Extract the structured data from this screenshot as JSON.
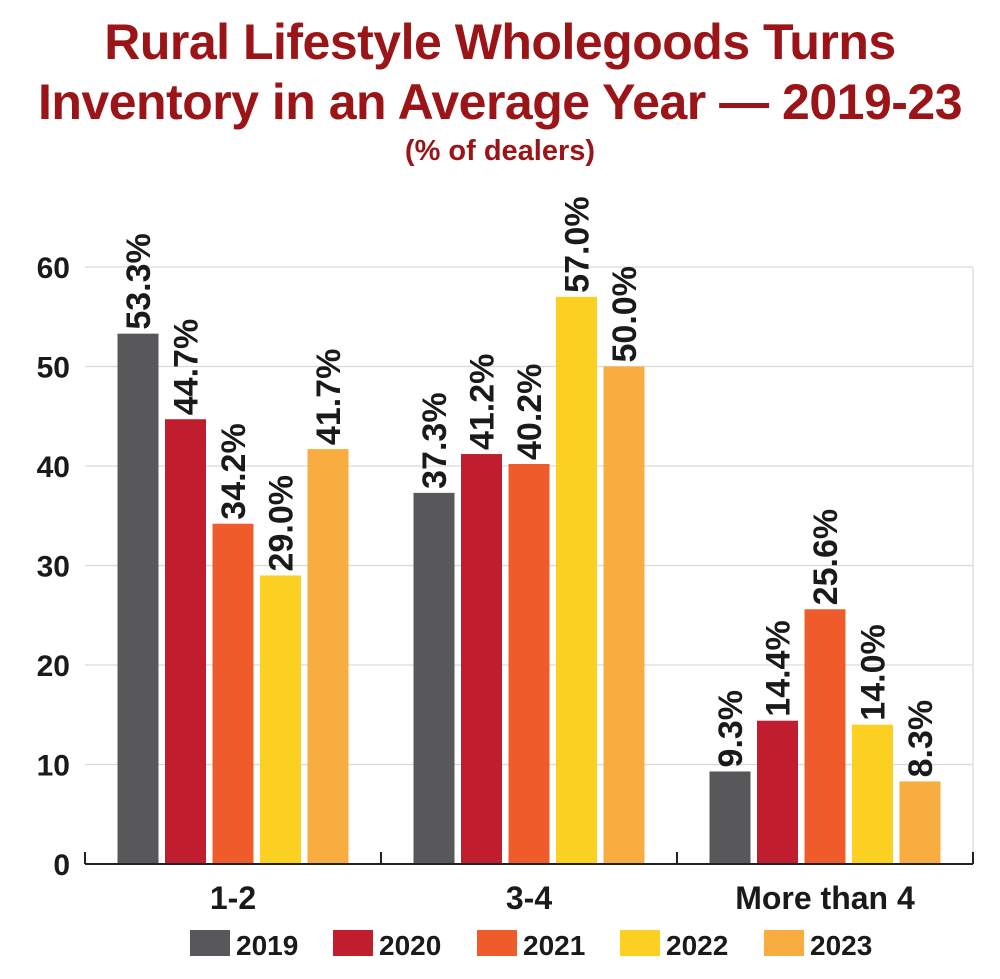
{
  "chart_data": {
    "type": "bar",
    "title": "Rural Lifestyle Wholegoods Turns",
    "title_line2": "Inventory in an Average Year — 2019-23",
    "subtitle": "(% of dealers)",
    "categories": [
      "1-2",
      "3-4",
      "More than 4"
    ],
    "series": [
      {
        "name": "2019",
        "color": "#58585a",
        "values": [
          53.3,
          37.3,
          9.3
        ],
        "labels": [
          "53.3%",
          "37.3%",
          "9.3%"
        ]
      },
      {
        "name": "2020",
        "color": "#c01e2e",
        "values": [
          44.7,
          41.2,
          14.4
        ],
        "labels": [
          "44.7%",
          "41.2%",
          "14.4%"
        ]
      },
      {
        "name": "2021",
        "color": "#ef5b2b",
        "values": [
          34.2,
          40.2,
          25.6
        ],
        "labels": [
          "34.2%",
          "40.2%",
          "25.6%"
        ]
      },
      {
        "name": "2022",
        "color": "#fcd020",
        "values": [
          29.0,
          57.0,
          14.0
        ],
        "labels": [
          "29.0%",
          "57.0%",
          "14.0%"
        ]
      },
      {
        "name": "2023",
        "color": "#f9ad40",
        "values": [
          41.7,
          50.0,
          8.3
        ],
        "labels": [
          "41.7%",
          "50.0%",
          "8.3%"
        ]
      }
    ],
    "yticks": [
      "0",
      "10",
      "20",
      "30",
      "40",
      "50",
      "60"
    ],
    "ylim": [
      0,
      60
    ],
    "grid": true,
    "legend": "bottom",
    "xlabel": "",
    "ylabel": ""
  }
}
